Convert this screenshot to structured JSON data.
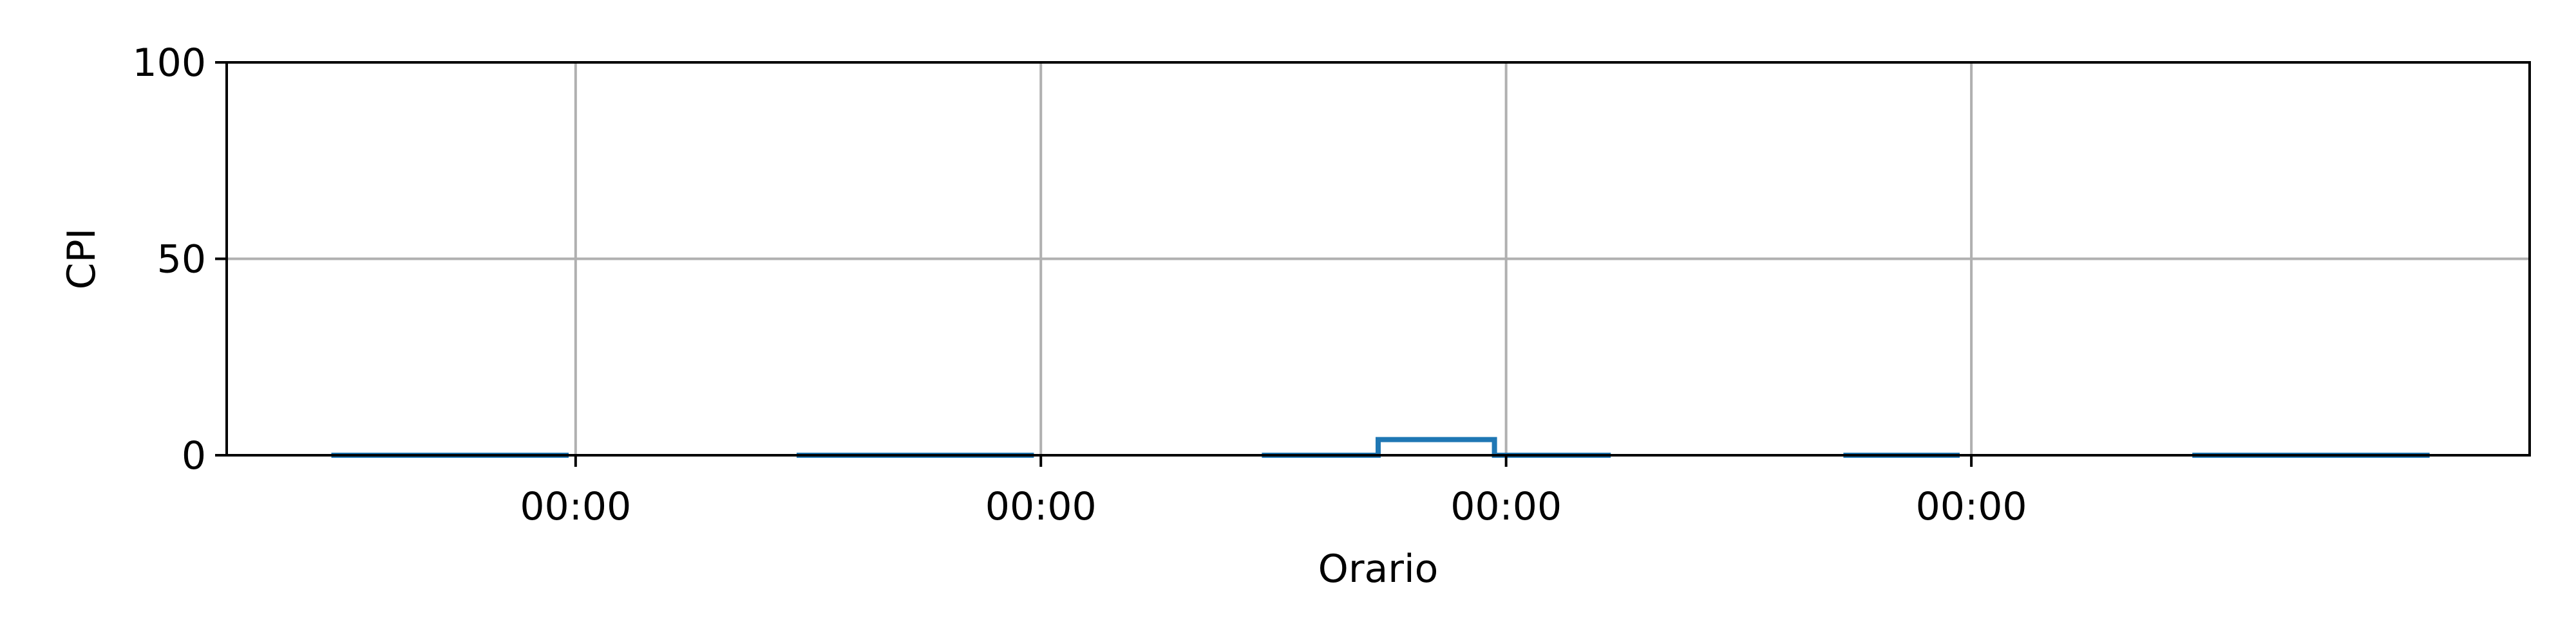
{
  "chart_data": {
    "type": "line",
    "step": true,
    "xlabel": "Orario",
    "ylabel": "CPI",
    "ylim": [
      0,
      100
    ],
    "yticks": [
      0,
      50,
      100
    ],
    "xlim": [
      -2.25,
      2.7
    ],
    "xticks": [
      {
        "pos": -1.5,
        "label": "00:00"
      },
      {
        "pos": -0.5,
        "label": "00:00"
      },
      {
        "pos": 0.5,
        "label": "00:00"
      },
      {
        "pos": 1.5,
        "label": "00:00"
      }
    ],
    "grid": true,
    "legend": "none",
    "series": [
      {
        "color": "#1f77b4",
        "segments": [
          {
            "x": [
              -2.025,
              -1.515
            ],
            "y": [
              0,
              0
            ]
          },
          {
            "x": [
              -1.025,
              -0.515
            ],
            "y": [
              0,
              0
            ]
          },
          {
            "x": [
              -0.025,
              0.225,
              0.225,
              0.475,
              0.475,
              0.725
            ],
            "y": [
              0,
              0,
              4,
              4,
              0,
              0
            ]
          },
          {
            "x": [
              1.225,
              1.475
            ],
            "y": [
              0,
              0
            ]
          },
          {
            "x": [
              1.975,
              2.485
            ],
            "y": [
              0,
              0
            ]
          }
        ]
      }
    ]
  }
}
